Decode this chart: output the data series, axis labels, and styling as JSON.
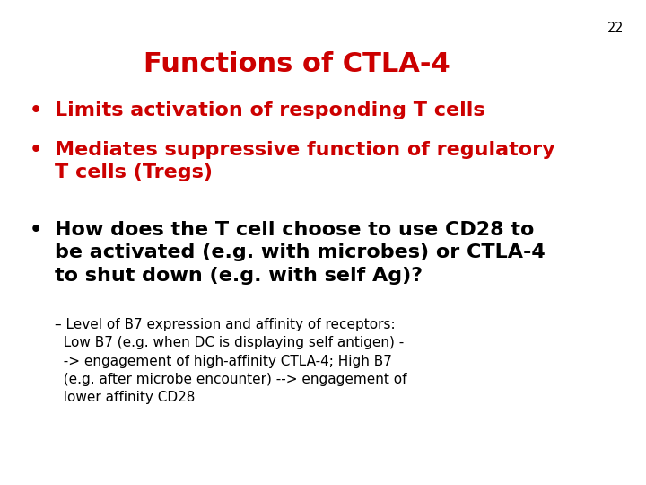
{
  "background_color": "#ffffff",
  "slide_number": "22",
  "slide_number_color": "#000000",
  "slide_number_fontsize": 11,
  "title": "Functions of CTLA-4",
  "title_color": "#cc0000",
  "title_fontsize": 22,
  "bullet_color_red": "#cc0000",
  "bullet_color_black": "#000000",
  "bullet1_text": "Limits activation of responding T cells",
  "bullet1_fontsize": 16,
  "bullet2_line1": "Mediates suppressive function of regulatory",
  "bullet2_line2": "T cells (Tregs)",
  "bullet2_fontsize": 16,
  "bullet3_line1": "How does the T cell choose to use CD28 to",
  "bullet3_line2": "be activated (e.g. with microbes) or CTLA-4",
  "bullet3_line3": "to shut down (e.g. with self Ag)?",
  "bullet3_fontsize": 16,
  "sub_fontsize": 11,
  "sub_line1": "– Level of B7 expression and affinity of receptors:",
  "sub_line2": "  Low B7 (e.g. when DC is displaying self antigen) -",
  "sub_line3": "  -> engagement of high-affinity CTLA-4; High B7",
  "sub_line4": "  (e.g. after microbe encounter) --> engagement of",
  "sub_line5": "  lower affinity CD28"
}
